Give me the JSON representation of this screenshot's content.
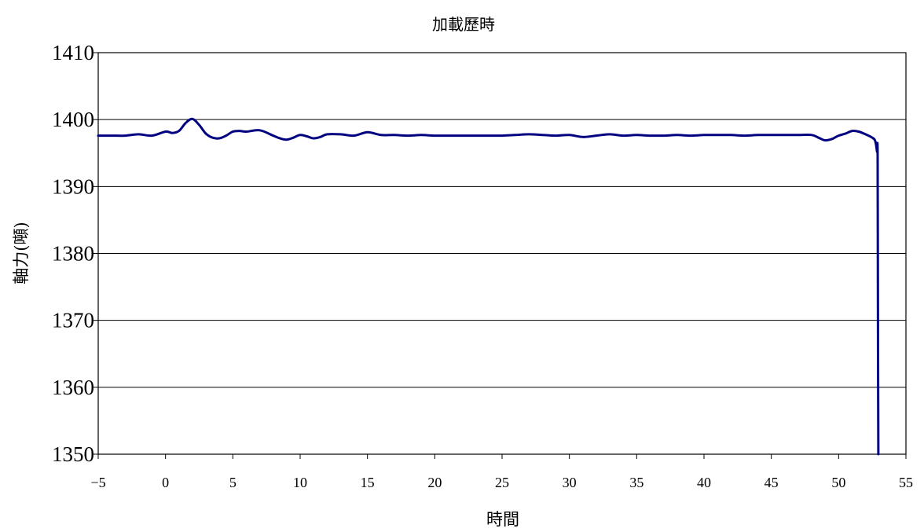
{
  "chart_data": {
    "type": "line",
    "title": "加載歷時",
    "xlabel": "時間",
    "ylabel": "軸力(噸)",
    "xlim": [
      -5,
      55
    ],
    "ylim": [
      1350,
      1410
    ],
    "xticks": [
      -5,
      0,
      5,
      10,
      15,
      20,
      25,
      30,
      35,
      40,
      45,
      50,
      55
    ],
    "yticks": [
      1350,
      1360,
      1370,
      1380,
      1390,
      1400,
      1410
    ],
    "grid": "horizontal",
    "legend": "none",
    "series": [
      {
        "color": "#000080",
        "x": [
          -5,
          -4,
          -3,
          -2,
          -1,
          0,
          0.5,
          1,
          1.5,
          2,
          2.5,
          3,
          3.5,
          4,
          4.5,
          5,
          5.5,
          6,
          7,
          8,
          8.5,
          9,
          9.5,
          10,
          10.5,
          11,
          11.5,
          12,
          13,
          14,
          15,
          16,
          17,
          18,
          19,
          20,
          21,
          22,
          23,
          24,
          25,
          26,
          27,
          28,
          29,
          30,
          31,
          32,
          33,
          34,
          35,
          36,
          37,
          38,
          39,
          40,
          41,
          42,
          43,
          44,
          45,
          46,
          47,
          48,
          48.5,
          49,
          49.5,
          50,
          50.5,
          51,
          51.5,
          52,
          52.5,
          52.7,
          52.8,
          52.85,
          52.9,
          52.92,
          52.95
        ],
        "y": [
          1397.6,
          1397.6,
          1397.6,
          1397.8,
          1397.6,
          1398.2,
          1398.0,
          1398.3,
          1399.5,
          1400.1,
          1399.2,
          1397.9,
          1397.3,
          1397.2,
          1397.6,
          1398.2,
          1398.3,
          1398.2,
          1398.4,
          1397.6,
          1397.2,
          1397.0,
          1397.3,
          1397.7,
          1397.5,
          1397.2,
          1397.4,
          1397.8,
          1397.8,
          1397.6,
          1398.1,
          1397.7,
          1397.7,
          1397.6,
          1397.7,
          1397.6,
          1397.6,
          1397.6,
          1397.6,
          1397.6,
          1397.6,
          1397.7,
          1397.8,
          1397.7,
          1397.6,
          1397.7,
          1397.4,
          1397.6,
          1397.8,
          1397.6,
          1397.7,
          1397.6,
          1397.6,
          1397.7,
          1397.6,
          1397.7,
          1397.7,
          1397.7,
          1397.6,
          1397.7,
          1397.7,
          1397.7,
          1397.7,
          1397.7,
          1397.3,
          1396.9,
          1397.1,
          1397.6,
          1397.9,
          1398.3,
          1398.2,
          1397.8,
          1397.3,
          1396.9,
          1396.0,
          1395.2,
          1394.5,
          1370.0,
          1350.0
        ]
      }
    ]
  }
}
